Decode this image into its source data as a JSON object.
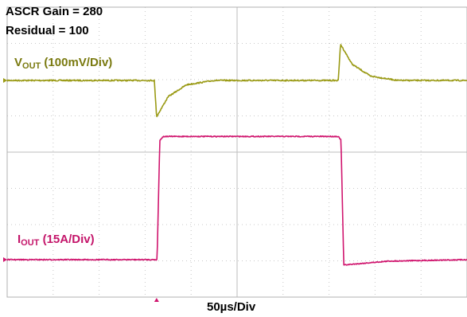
{
  "header": {
    "gain_label": "ASCR Gain = 280",
    "residual_label": "Residual = 100"
  },
  "channels": {
    "vout": {
      "name": "V",
      "sub": "OUT",
      "scale": " (100mV/Div)",
      "color": "#9a9a14"
    },
    "iout": {
      "name": "I",
      "sub": "OUT",
      "scale": " (15A/Div)",
      "color": "#d0156e"
    }
  },
  "timebase_label": "50µs/Div",
  "chart_data": {
    "type": "line",
    "title": "",
    "xlabel": "50µs/Div",
    "x_divisions": 10,
    "y_divisions": 8,
    "grid": true,
    "series": [
      {
        "name": "VOUT (100mV/Div)",
        "units": "V",
        "points": [
          [
            0,
            0
          ],
          [
            3.2,
            0
          ],
          [
            3.25,
            -0.1
          ],
          [
            3.5,
            -0.045
          ],
          [
            3.9,
            -0.012
          ],
          [
            4.5,
            0
          ],
          [
            7.2,
            0
          ],
          [
            7.25,
            0.1
          ],
          [
            7.5,
            0.045
          ],
          [
            7.9,
            0.012
          ],
          [
            8.5,
            0
          ],
          [
            10,
            0
          ]
        ]
      },
      {
        "name": "IOUT (15A/Div)",
        "units": "A",
        "points": [
          [
            0,
            0
          ],
          [
            3.26,
            0
          ],
          [
            3.32,
            49.5
          ],
          [
            3.4,
            51
          ],
          [
            7.2,
            51
          ],
          [
            7.26,
            49.5
          ],
          [
            7.32,
            -2.2
          ],
          [
            8.3,
            -0.6
          ],
          [
            10,
            0
          ]
        ]
      }
    ]
  }
}
